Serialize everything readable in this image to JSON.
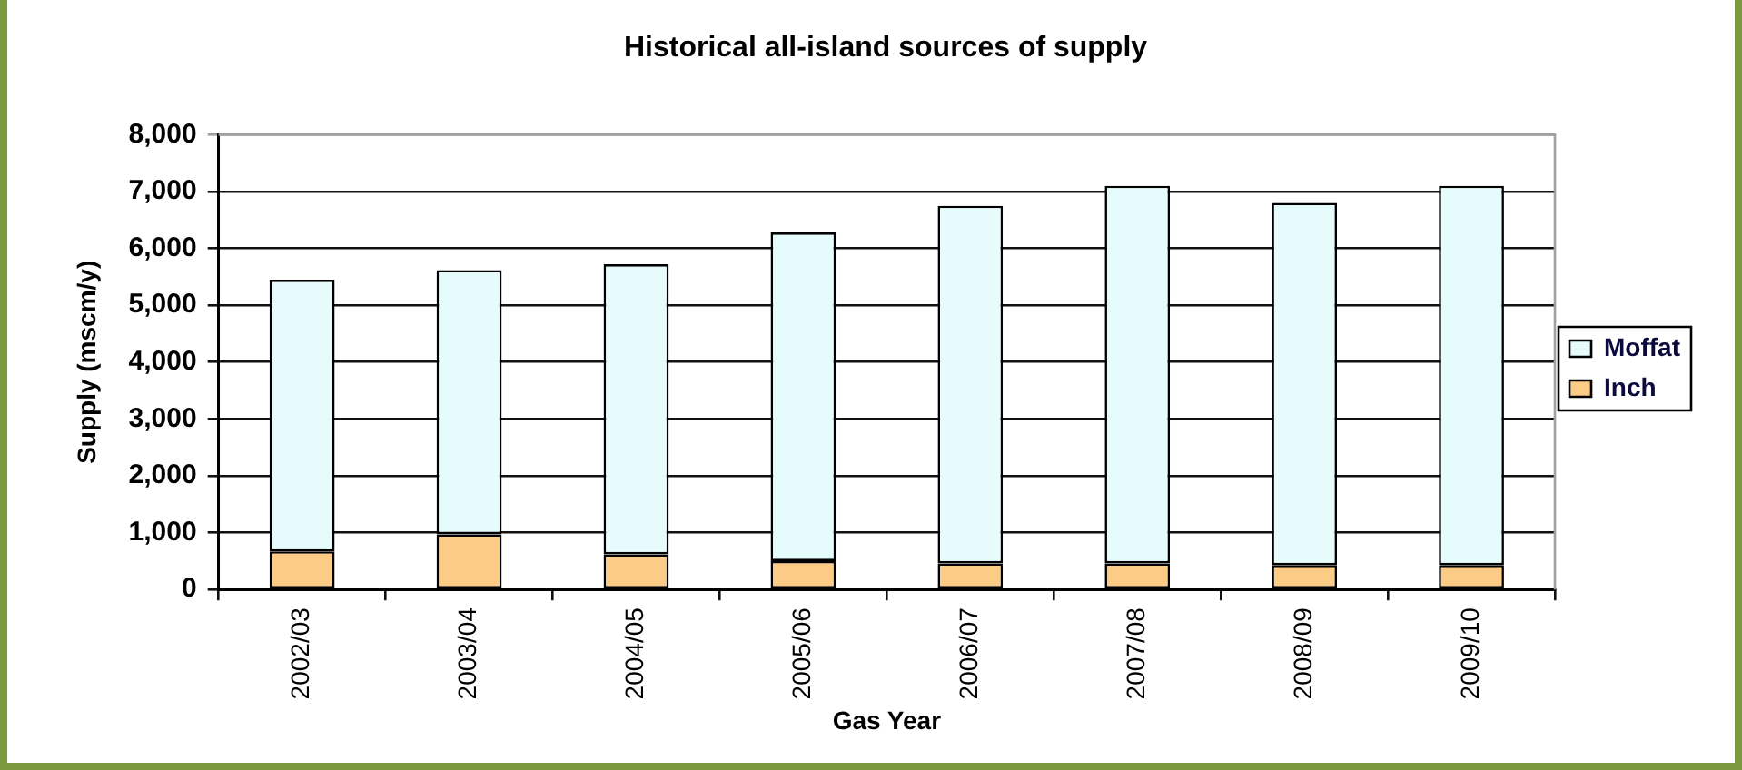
{
  "chart_data": {
    "type": "bar",
    "title": "Historical all-island sources of supply",
    "xlabel": "Gas Year",
    "ylabel": "Supply (mscm/y)",
    "categories": [
      "2002/03",
      "2003/04",
      "2004/05",
      "2005/06",
      "2006/07",
      "2007/08",
      "2008/09",
      "2009/10"
    ],
    "stacked": true,
    "series": [
      {
        "name": "Inch",
        "color": "#fccb86",
        "values": [
          670,
          970,
          620,
          500,
          460,
          460,
          430,
          430
        ]
      },
      {
        "name": "Moffat",
        "color": "#e6fcfc",
        "values": [
          4780,
          4650,
          5100,
          5780,
          6290,
          6640,
          6370,
          6670
        ]
      }
    ],
    "ylim": [
      0,
      8000
    ],
    "yticks": [
      {
        "value": 0,
        "label": "0"
      },
      {
        "value": 1000,
        "label": "1,000"
      },
      {
        "value": 2000,
        "label": "2,000"
      },
      {
        "value": 3000,
        "label": "3,000"
      },
      {
        "value": 4000,
        "label": "4,000"
      },
      {
        "value": 5000,
        "label": "5,000"
      },
      {
        "value": 6000,
        "label": "6,000"
      },
      {
        "value": 7000,
        "label": "7,000"
      },
      {
        "value": 8000,
        "label": "8,000"
      }
    ],
    "grid": "y",
    "legend": "right"
  }
}
